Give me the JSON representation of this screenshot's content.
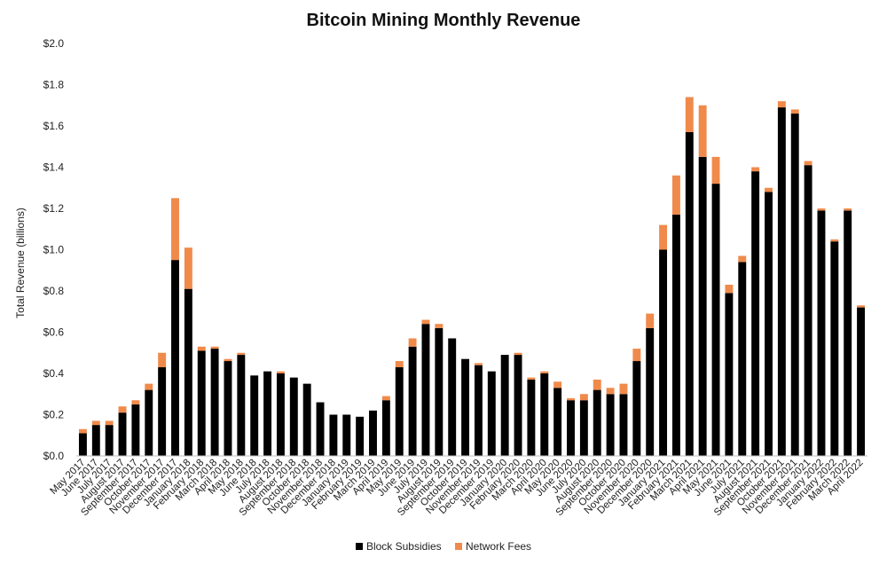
{
  "chart_data": {
    "type": "bar",
    "stacked": true,
    "title": "Bitcoin Mining Monthly Revenue",
    "xlabel": "",
    "ylabel": "Total Revenue (billions)",
    "ylim": [
      0,
      2.0
    ],
    "yticks": [
      0,
      0.2,
      0.4,
      0.6,
      0.8,
      1.0,
      1.2,
      1.4,
      1.6,
      1.8,
      2.0
    ],
    "ytick_labels": [
      "$0.0",
      "$0.2",
      "$0.4",
      "$0.6",
      "$0.8",
      "$1.0",
      "$1.2",
      "$1.4",
      "$1.6",
      "$1.8",
      "$2.0"
    ],
    "grid": false,
    "legend_position": "bottom",
    "categories": [
      "May 2017",
      "June 2017",
      "July 2017",
      "August 2017",
      "September 2017",
      "October 2017",
      "November 2017",
      "December 2017",
      "January 2018",
      "February 2018",
      "March 2018",
      "April 2018",
      "May 2018",
      "June 2018",
      "July 2018",
      "August 2018",
      "September 2018",
      "October 2018",
      "November 2018",
      "December 2018",
      "January 2019",
      "February 2019",
      "March 2019",
      "April 2019",
      "May 2019",
      "June 2019",
      "July 2019",
      "August 2019",
      "September 2019",
      "October 2019",
      "November 2019",
      "December 2019",
      "January 2020",
      "February 2020",
      "March 2020",
      "April 2020",
      "May 2020",
      "June 2020",
      "July 2020",
      "August 2020",
      "September 2020",
      "October 2020",
      "November 2020",
      "December 2020",
      "January 2021",
      "February 2021",
      "March 2021",
      "April 2021",
      "May 2021",
      "June 2021",
      "July 2021",
      "August 2021",
      "September 2021",
      "October 2021",
      "November 2021",
      "December 2021",
      "January 2022",
      "February 2022",
      "March 2022",
      "April 2022"
    ],
    "series": [
      {
        "name": "Block Subsidies",
        "color": "#000000",
        "values": [
          0.11,
          0.15,
          0.15,
          0.21,
          0.25,
          0.32,
          0.43,
          0.95,
          0.81,
          0.51,
          0.52,
          0.46,
          0.49,
          0.39,
          0.41,
          0.4,
          0.38,
          0.35,
          0.26,
          0.2,
          0.2,
          0.19,
          0.22,
          0.27,
          0.43,
          0.53,
          0.64,
          0.62,
          0.57,
          0.47,
          0.44,
          0.41,
          0.49,
          0.49,
          0.37,
          0.4,
          0.33,
          0.27,
          0.27,
          0.32,
          0.3,
          0.3,
          0.46,
          0.62,
          1.0,
          1.17,
          1.57,
          1.45,
          1.32,
          0.79,
          0.94,
          1.38,
          1.28,
          1.69,
          1.66,
          1.41,
          1.19,
          1.04,
          1.19,
          0.72
        ]
      },
      {
        "name": "Network Fees",
        "color": "#f08a4b",
        "values": [
          0.02,
          0.02,
          0.02,
          0.03,
          0.02,
          0.03,
          0.07,
          0.3,
          0.2,
          0.02,
          0.01,
          0.01,
          0.01,
          0.0,
          0.0,
          0.01,
          0.0,
          0.0,
          0.0,
          0.0,
          0.0,
          0.0,
          0.0,
          0.02,
          0.03,
          0.04,
          0.02,
          0.02,
          0.0,
          0.0,
          0.01,
          0.0,
          0.0,
          0.01,
          0.01,
          0.01,
          0.03,
          0.01,
          0.03,
          0.05,
          0.03,
          0.05,
          0.06,
          0.07,
          0.12,
          0.19,
          0.17,
          0.25,
          0.13,
          0.04,
          0.03,
          0.02,
          0.02,
          0.03,
          0.02,
          0.02,
          0.01,
          0.01,
          0.01,
          0.01
        ]
      }
    ]
  }
}
